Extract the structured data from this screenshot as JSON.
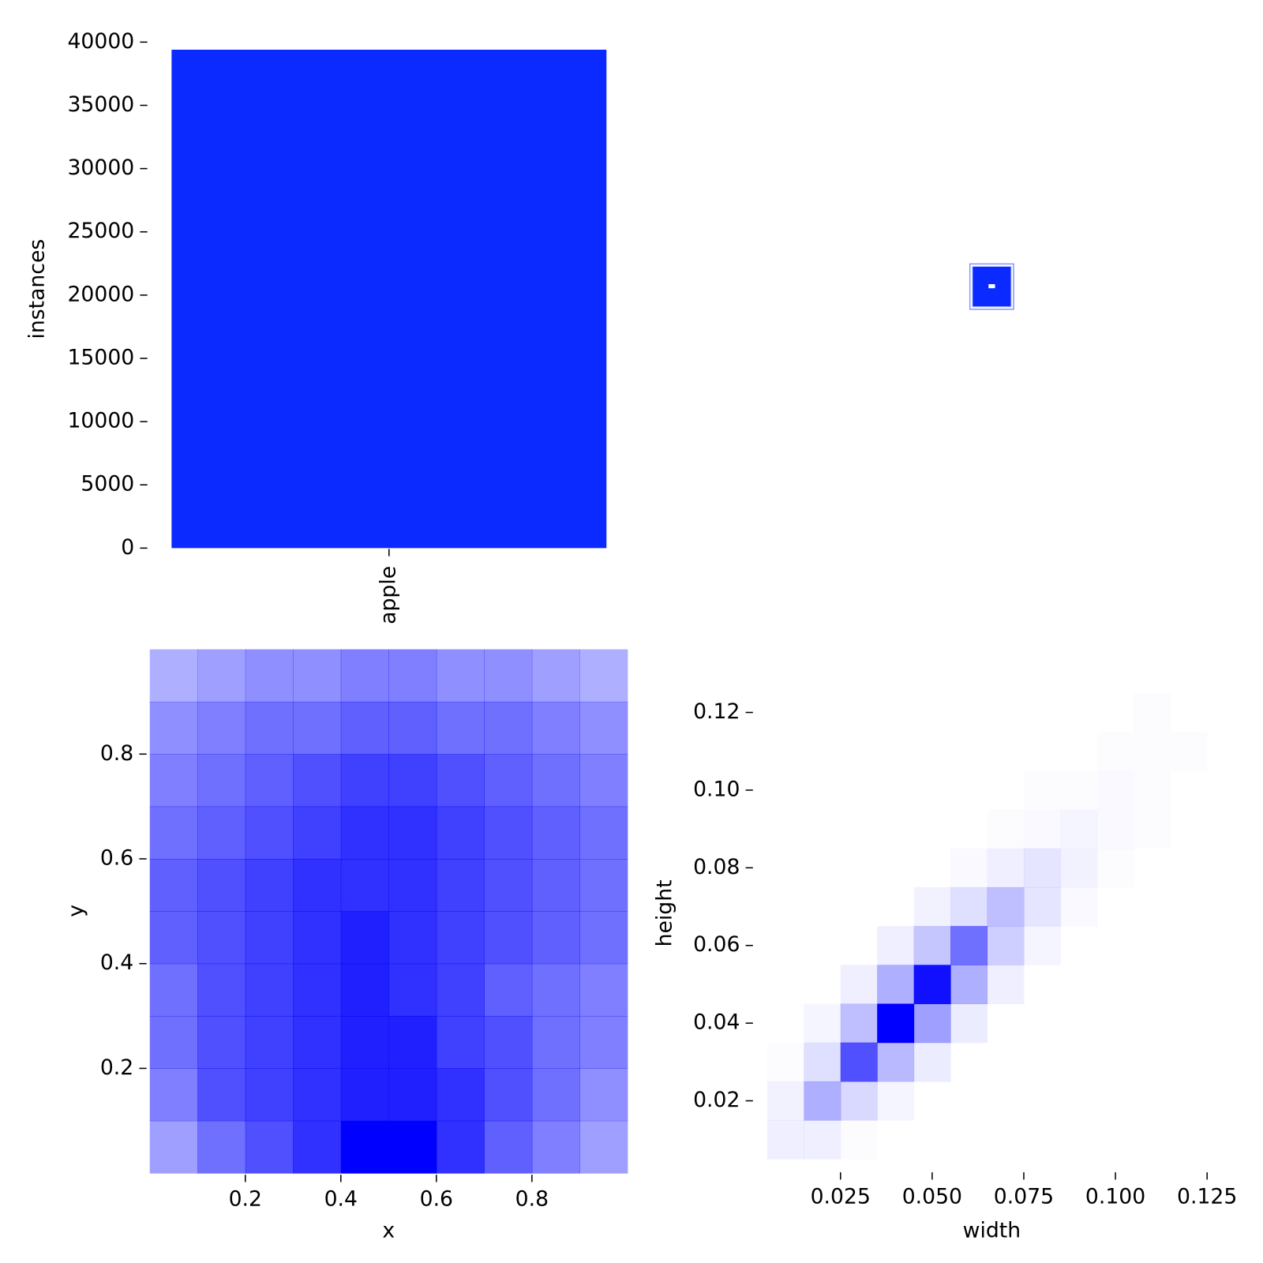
{
  "chart_data": [
    {
      "type": "bar",
      "categories": [
        "apple"
      ],
      "values": [
        39400
      ],
      "color": "#0a2aff",
      "ylabel": "instances",
      "ylim": [
        0,
        40000
      ],
      "yticks": [
        0,
        5000,
        10000,
        15000,
        20000,
        25000,
        30000,
        35000,
        40000
      ]
    },
    {
      "type": "hist2d",
      "xlabel": "x",
      "ylabel": "y",
      "color": "#0000ff",
      "xlim": [
        0,
        1
      ],
      "ylim": [
        0,
        1
      ],
      "xticks": [
        0.2,
        0.4,
        0.6,
        0.8
      ],
      "yticks": [
        0.2,
        0.4,
        0.6,
        0.8
      ],
      "xbins": [
        0,
        0.1,
        0.2,
        0.3,
        0.4,
        0.5,
        0.6,
        0.7,
        0.8,
        0.9,
        1
      ],
      "ybins": [
        0,
        0.1,
        0.2,
        0.3,
        0.4,
        0.5,
        0.6,
        0.7,
        0.8,
        0.9,
        1
      ],
      "counts": [
        [
          30,
          45,
          55,
          65,
          80,
          80,
          65,
          50,
          40,
          30
        ],
        [
          40,
          55,
          60,
          65,
          70,
          70,
          65,
          55,
          45,
          35
        ],
        [
          45,
          55,
          60,
          65,
          70,
          70,
          60,
          55,
          45,
          40
        ],
        [
          45,
          55,
          60,
          65,
          70,
          65,
          60,
          50,
          45,
          40
        ],
        [
          50,
          55,
          60,
          65,
          70,
          65,
          60,
          55,
          50,
          45
        ],
        [
          50,
          55,
          60,
          65,
          65,
          65,
          60,
          55,
          50,
          45
        ],
        [
          45,
          50,
          55,
          60,
          65,
          65,
          60,
          55,
          50,
          45
        ],
        [
          40,
          45,
          50,
          55,
          60,
          60,
          55,
          50,
          45,
          40
        ],
        [
          35,
          40,
          45,
          45,
          50,
          50,
          45,
          45,
          40,
          35
        ],
        [
          25,
          30,
          35,
          35,
          40,
          40,
          35,
          35,
          30,
          25
        ]
      ]
    },
    {
      "type": "hist2d",
      "xlabel": "width",
      "ylabel": "height",
      "color": "#0000ff",
      "xlim": [
        0.002,
        0.127
      ],
      "ylim": [
        0.002,
        0.125
      ],
      "xticks": [
        0.025,
        {
          "value": 0.05,
          "label": "0.050"
        },
        0.075,
        {
          "value": 0.1,
          "label": "0.100"
        },
        0.125
      ],
      "yticks": [
        0.02,
        0.04,
        0.06,
        0.08,
        {
          "value": 0.1,
          "label": "0.10"
        },
        0.12
      ],
      "xbins": [
        0.005,
        0.015,
        0.025,
        0.035,
        0.045,
        0.055,
        0.065,
        0.075,
        0.085,
        0.095,
        0.105,
        0.115,
        0.125
      ],
      "ybins": [
        0.005,
        0.015,
        0.025,
        0.035,
        0.045,
        0.055,
        0.065,
        0.075,
        0.085,
        0.095,
        0.105,
        0.115,
        0.125
      ],
      "counts": [
        [
          5,
          5,
          1,
          0,
          0,
          0,
          0,
          0,
          0,
          0,
          0,
          0
        ],
        [
          4,
          25,
          12,
          3,
          0,
          0,
          0,
          0,
          0,
          0,
          0,
          0
        ],
        [
          1,
          10,
          55,
          22,
          6,
          0,
          0,
          0,
          0,
          0,
          0,
          0
        ],
        [
          0,
          3,
          20,
          80,
          30,
          6,
          0,
          0,
          0,
          0,
          0,
          0
        ],
        [
          0,
          0,
          5,
          25,
          75,
          25,
          5,
          0,
          0,
          0,
          0,
          0
        ],
        [
          0,
          0,
          0,
          5,
          18,
          45,
          15,
          3,
          0,
          0,
          0,
          0
        ],
        [
          0,
          0,
          0,
          0,
          4,
          10,
          20,
          8,
          2,
          0,
          0,
          0
        ],
        [
          0,
          0,
          0,
          0,
          0,
          2,
          5,
          8,
          4,
          1,
          0,
          0
        ],
        [
          0,
          0,
          0,
          0,
          0,
          0,
          1,
          2,
          3,
          2,
          1,
          0
        ],
        [
          0,
          0,
          0,
          0,
          0,
          0,
          0,
          1,
          1,
          2,
          1,
          0
        ],
        [
          0,
          0,
          0,
          0,
          0,
          0,
          0,
          0,
          0,
          1,
          1,
          1
        ],
        [
          0,
          0,
          0,
          0,
          0,
          0,
          0,
          0,
          0,
          0,
          1,
          0
        ]
      ]
    }
  ]
}
